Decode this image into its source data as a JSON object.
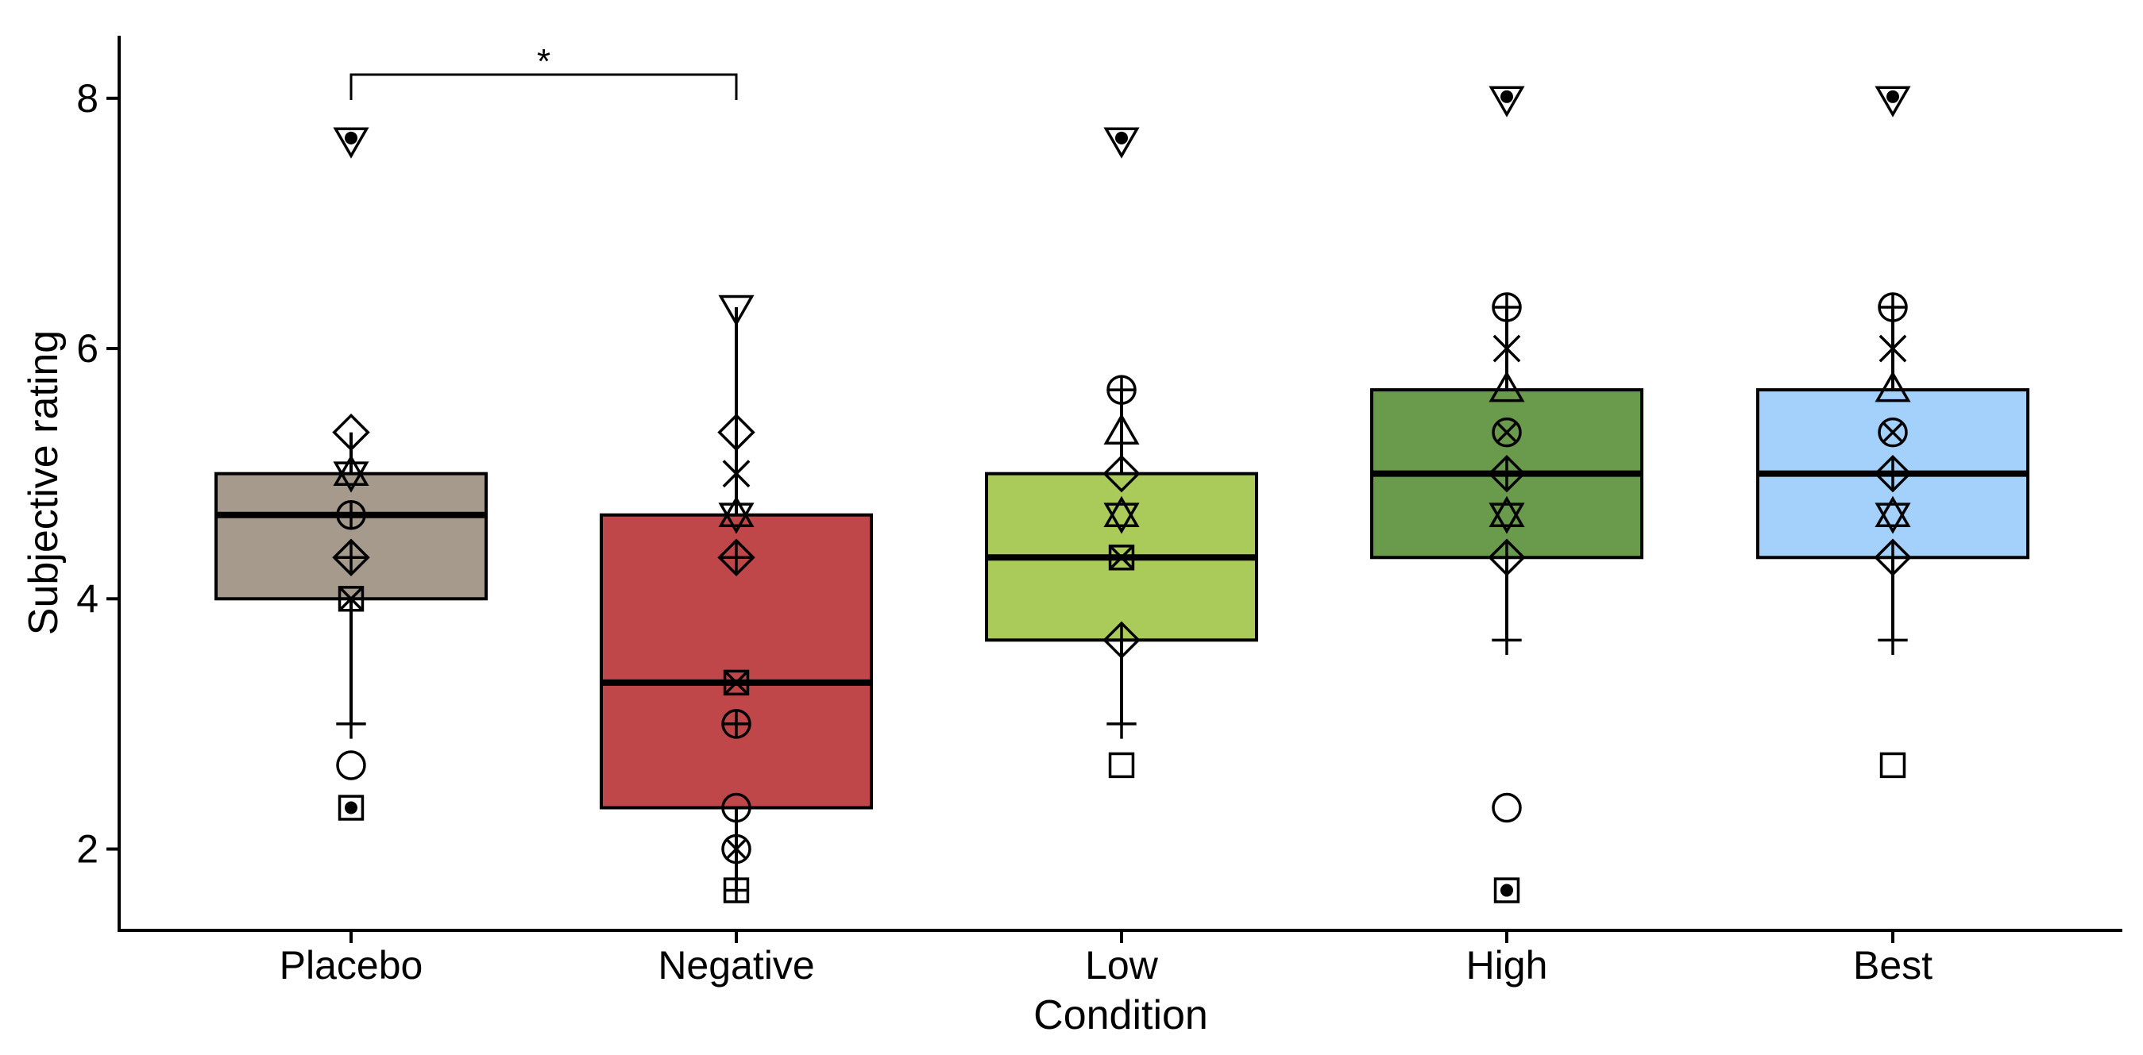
{
  "chart_data": {
    "type": "boxplot",
    "xlabel": "Condition",
    "ylabel": "Subjective rating",
    "ylim": [
      1.35,
      8.5
    ],
    "yticks": [
      2,
      4,
      6,
      8
    ],
    "grid": false,
    "categories": [
      "Placebo",
      "Negative",
      "Low",
      "High",
      "Best"
    ],
    "colors": [
      "#a69a8c",
      "#bf4749",
      "#aacb5a",
      "#6a9a4b",
      "#a4d1fc"
    ],
    "boxes": [
      {
        "q1": 4.0,
        "median": 4.67,
        "q3": 5.0,
        "whisker_low": 3.0,
        "whisker_high": 5.33
      },
      {
        "q1": 2.33,
        "median": 3.33,
        "q3": 4.67,
        "whisker_low": 1.67,
        "whisker_high": 6.33
      },
      {
        "q1": 3.67,
        "median": 4.33,
        "q3": 5.0,
        "whisker_low": 3.0,
        "whisker_high": 5.67
      },
      {
        "q1": 4.33,
        "median": 5.0,
        "q3": 5.67,
        "whisker_low": 3.67,
        "whisker_high": 6.33
      },
      {
        "q1": 4.33,
        "median": 5.0,
        "q3": 5.67,
        "whisker_low": 3.67,
        "whisker_high": 6.33
      }
    ],
    "points": [
      [
        {
          "y": 7.67,
          "shape": "triangle-down-dot"
        },
        {
          "y": 5.33,
          "shape": "diamond"
        },
        {
          "y": 5.0,
          "shape": "star"
        },
        {
          "y": 4.67,
          "shape": "circle-plus"
        },
        {
          "y": 4.33,
          "shape": "diamond-plus"
        },
        {
          "y": 4.0,
          "shape": "square-x"
        },
        {
          "y": 3.0,
          "shape": "plus"
        },
        {
          "y": 2.67,
          "shape": "circle"
        },
        {
          "y": 2.33,
          "shape": "square-dot"
        }
      ],
      [
        {
          "y": 6.33,
          "shape": "triangle-down"
        },
        {
          "y": 5.33,
          "shape": "diamond"
        },
        {
          "y": 5.0,
          "shape": "x"
        },
        {
          "y": 4.67,
          "shape": "star"
        },
        {
          "y": 4.33,
          "shape": "diamond-plus"
        },
        {
          "y": 3.33,
          "shape": "square-x"
        },
        {
          "y": 3.0,
          "shape": "circle-plus"
        },
        {
          "y": 2.33,
          "shape": "circle"
        },
        {
          "y": 2.0,
          "shape": "circle-x"
        },
        {
          "y": 1.67,
          "shape": "square-plus"
        }
      ],
      [
        {
          "y": 7.67,
          "shape": "triangle-down-dot"
        },
        {
          "y": 5.67,
          "shape": "circle-plus"
        },
        {
          "y": 5.33,
          "shape": "triangle"
        },
        {
          "y": 5.0,
          "shape": "diamond"
        },
        {
          "y": 4.67,
          "shape": "star"
        },
        {
          "y": 4.33,
          "shape": "square-x"
        },
        {
          "y": 3.67,
          "shape": "diamond-plus"
        },
        {
          "y": 3.0,
          "shape": "plus"
        },
        {
          "y": 2.67,
          "shape": "square"
        }
      ],
      [
        {
          "y": 8.0,
          "shape": "triangle-down-dot"
        },
        {
          "y": 6.33,
          "shape": "circle-plus"
        },
        {
          "y": 6.0,
          "shape": "x"
        },
        {
          "y": 5.67,
          "shape": "triangle"
        },
        {
          "y": 5.33,
          "shape": "circle-x"
        },
        {
          "y": 5.0,
          "shape": "diamond-plus"
        },
        {
          "y": 4.67,
          "shape": "star"
        },
        {
          "y": 4.33,
          "shape": "diamond-plus"
        },
        {
          "y": 3.67,
          "shape": "plus"
        },
        {
          "y": 2.33,
          "shape": "circle"
        },
        {
          "y": 1.67,
          "shape": "square-dot"
        }
      ],
      [
        {
          "y": 8.0,
          "shape": "triangle-down-dot"
        },
        {
          "y": 6.33,
          "shape": "circle-plus"
        },
        {
          "y": 6.0,
          "shape": "x"
        },
        {
          "y": 5.67,
          "shape": "triangle"
        },
        {
          "y": 5.33,
          "shape": "circle-x"
        },
        {
          "y": 5.0,
          "shape": "diamond-plus"
        },
        {
          "y": 4.67,
          "shape": "star"
        },
        {
          "y": 4.33,
          "shape": "diamond-plus"
        },
        {
          "y": 3.67,
          "shape": "plus"
        },
        {
          "y": 2.67,
          "shape": "square"
        }
      ]
    ],
    "annotations": [
      {
        "type": "significance-bracket",
        "from": "Placebo",
        "to": "Negative",
        "label": "*"
      }
    ]
  }
}
